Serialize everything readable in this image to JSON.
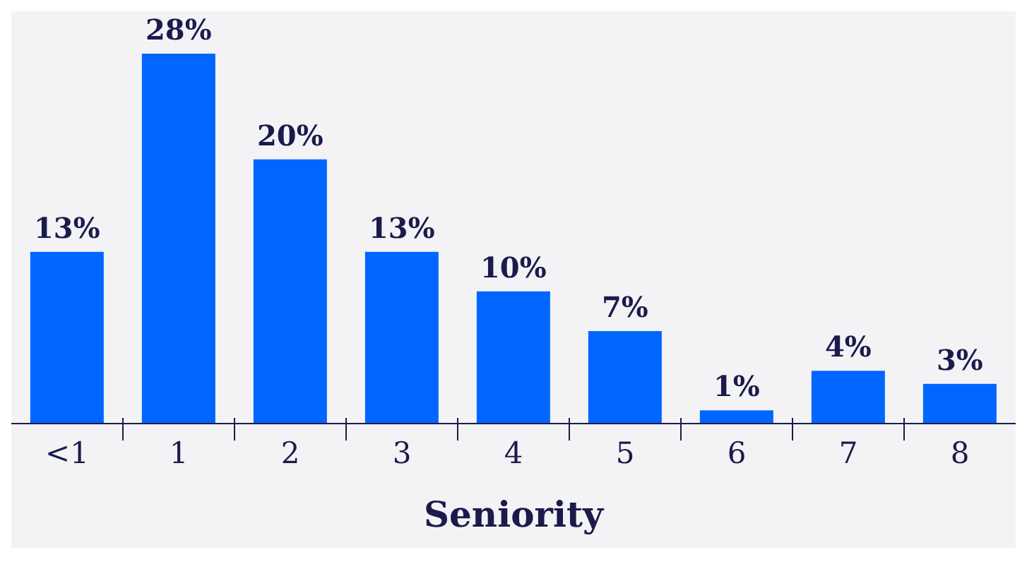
{
  "chart_data": {
    "type": "bar",
    "xlabel": "Seniority",
    "categories": [
      "<1",
      "1",
      "2",
      "3",
      "4",
      "5",
      "6",
      "7",
      "8"
    ],
    "values": [
      13,
      28,
      20,
      13,
      10,
      7,
      1,
      4,
      3
    ],
    "value_labels": [
      "13%",
      "28%",
      "20%",
      "13%",
      "10%",
      "7%",
      "1%",
      "4%",
      "3%"
    ],
    "color": "#0066ff"
  }
}
